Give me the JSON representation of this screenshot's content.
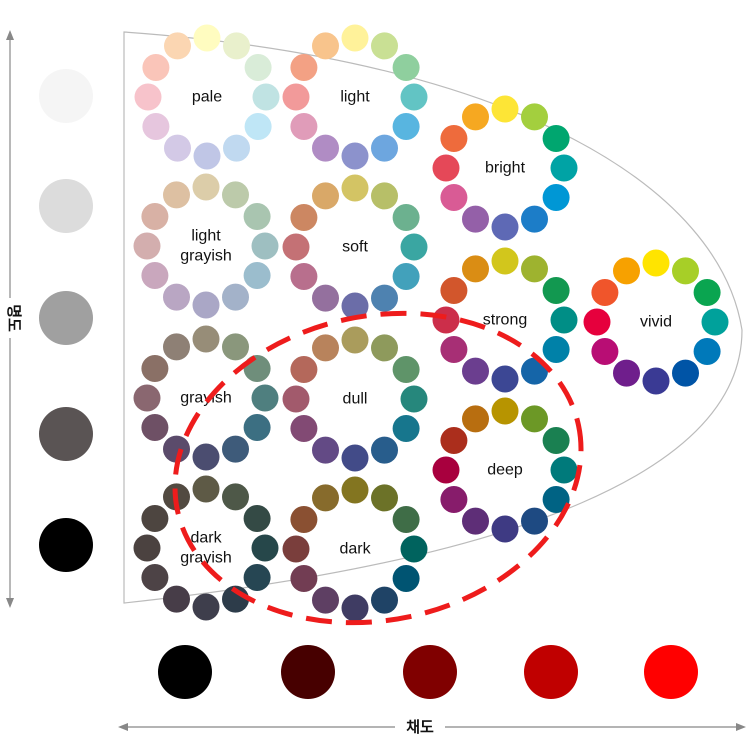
{
  "axes": {
    "vertical_label": "명도",
    "horizontal_label": "채도"
  },
  "lightness_swatches": [
    "#f5f5f5",
    "#dcdcdc",
    "#a0a0a0",
    "#5a5454",
    "#000000"
  ],
  "chroma_swatches": [
    "#000000",
    "#470000",
    "#800000",
    "#c00000",
    "#ff0000"
  ],
  "tones": [
    {
      "id": "pale",
      "lines": [
        "pale"
      ],
      "colors": [
        "#fffcc0",
        "#e9f0cc",
        "#d9ecd8",
        "#c0e3e3",
        "#bfe6f6",
        "#c0d9f0",
        "#c0c6e6",
        "#d3c9e6",
        "#e6c6de",
        "#f7c3cb",
        "#fac5b9",
        "#fbd6b2"
      ]
    },
    {
      "id": "light",
      "lines": [
        "light"
      ],
      "colors": [
        "#fff29a",
        "#c9e094",
        "#8fcf9e",
        "#62c4c4",
        "#58b5e0",
        "#6da6df",
        "#8c92cc",
        "#b08cc4",
        "#e09cb9",
        "#f29a9a",
        "#f3a184",
        "#f8c48c"
      ]
    },
    {
      "id": "bright",
      "lines": [
        "bright"
      ],
      "colors": [
        "#fde536",
        "#a3cf3e",
        "#00a66f",
        "#00a3a5",
        "#0097d5",
        "#1c7dc8",
        "#5e69b5",
        "#9460a8",
        "#d95b95",
        "#e54858",
        "#ee6b3c",
        "#f6a821"
      ]
    },
    {
      "id": "light-grayish",
      "lines": [
        "light",
        "grayish"
      ],
      "colors": [
        "#dccda9",
        "#bccaaa",
        "#a9c5b0",
        "#9ebfc1",
        "#9bbdcd",
        "#a3b2c9",
        "#aaa7c6",
        "#b9a6c3",
        "#c9a7bd",
        "#d3aeae",
        "#d8b1a5",
        "#ddc0a2"
      ]
    },
    {
      "id": "soft",
      "lines": [
        "soft"
      ],
      "colors": [
        "#d3c464",
        "#b7bf68",
        "#6cb18f",
        "#3aa6a2",
        "#42a1bb",
        "#4e82b0",
        "#6b6da8",
        "#94709e",
        "#b86f8d",
        "#c47175",
        "#cc8762",
        "#d9a868"
      ]
    },
    {
      "id": "strong",
      "lines": [
        "strong"
      ],
      "colors": [
        "#d2c61c",
        "#9eb32f",
        "#129850",
        "#008e86",
        "#0081a8",
        "#1565a8",
        "#3c4794",
        "#6b3e8f",
        "#a72f75",
        "#cc2e4a",
        "#d2562c",
        "#da8d14"
      ]
    },
    {
      "id": "vivid",
      "lines": [
        "vivid"
      ],
      "colors": [
        "#ffe400",
        "#a7cf27",
        "#0aa550",
        "#00a19b",
        "#0079ba",
        "#0054a6",
        "#3a3a94",
        "#6f1e8c",
        "#b80d74",
        "#e6003d",
        "#f0552b",
        "#f7a100"
      ]
    },
    {
      "id": "grayish",
      "lines": [
        "grayish"
      ],
      "colors": [
        "#978d78",
        "#8a977c",
        "#6f8e7b",
        "#4f7f7f",
        "#3c6f82",
        "#3e5b7a",
        "#4b4d70",
        "#5b4b6b",
        "#6e5065",
        "#8a6770",
        "#8a7066",
        "#8e8075"
      ]
    },
    {
      "id": "dull",
      "lines": [
        "dull"
      ],
      "colors": [
        "#aa9c5c",
        "#8e9a5c",
        "#5f9469",
        "#26877c",
        "#17768d",
        "#285d8c",
        "#424b88",
        "#634a85",
        "#824a74",
        "#a25a6c",
        "#b4685b",
        "#b8835c"
      ]
    },
    {
      "id": "deep",
      "lines": [
        "deep"
      ],
      "colors": [
        "#b79400",
        "#6c9826",
        "#1a8051",
        "#007a7b",
        "#006384",
        "#1e4a82",
        "#3e3a83",
        "#5e2e77",
        "#871c6b",
        "#a8003e",
        "#ab2e1c",
        "#b86e10"
      ]
    },
    {
      "id": "dark-grayish",
      "lines": [
        "dark",
        "grayish"
      ],
      "colors": [
        "#5e5a46",
        "#4e5848",
        "#344a45",
        "#26474a",
        "#264653",
        "#2d3c4a",
        "#3e3e4c",
        "#473d48",
        "#4d4346",
        "#4b4240",
        "#4d4540",
        "#524a41"
      ]
    },
    {
      "id": "dark",
      "lines": [
        "dark"
      ],
      "colors": [
        "#837520",
        "#6c7228",
        "#3f6d47",
        "#00635e",
        "#005472",
        "#1f4366",
        "#3f3c63",
        "#5e3f63",
        "#723d53",
        "#7a3e3c",
        "#8a5032",
        "#876b2c"
      ]
    }
  ]
}
